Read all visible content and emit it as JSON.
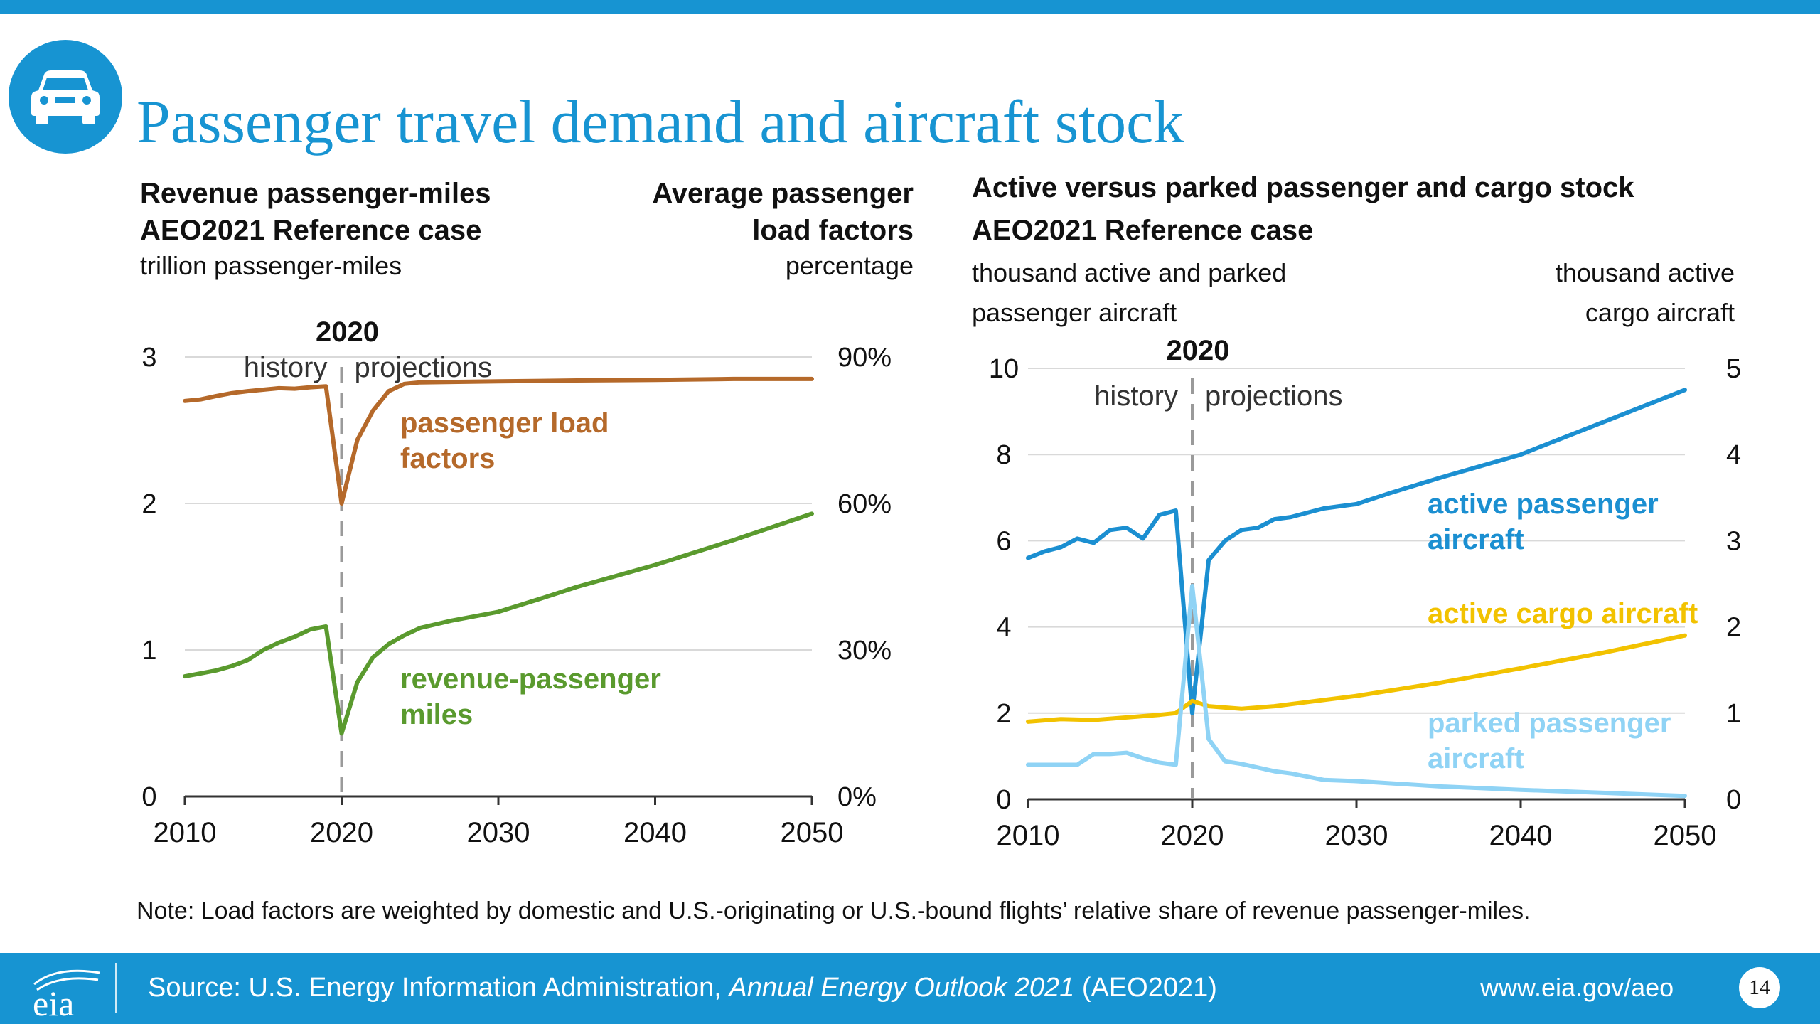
{
  "header": {
    "title": "Passenger travel demand and aircraft stock",
    "icon": "car-icon",
    "accent_color": "#1794d2"
  },
  "left_panel": {
    "title_line1": "Revenue passenger-miles",
    "title_line2": "AEO2021 Reference case",
    "left_unit": "trillion passenger-miles",
    "right_title_line1": "Average passenger",
    "right_title_line2": "load factors",
    "right_unit": "percentage"
  },
  "right_panel": {
    "title_line1": "Active versus parked passenger and cargo stock",
    "title_line2": "AEO2021 Reference case",
    "left_unit_line1": "thousand active and parked",
    "left_unit_line2": "passenger aircraft",
    "right_unit_line1": "thousand active",
    "right_unit_line2": "cargo aircraft"
  },
  "chart_data": [
    {
      "type": "line",
      "x_ticks": [
        "2010",
        "2020",
        "2030",
        "2040",
        "2050"
      ],
      "xlim": [
        2010,
        2050
      ],
      "ylim": [
        0,
        3
      ],
      "y_ticks": [
        "0",
        "1",
        "2",
        "3"
      ],
      "y2lim": [
        0,
        90
      ],
      "y2_ticks": [
        "0%",
        "30%",
        "60%",
        "90%"
      ],
      "grid": true,
      "annotations": {
        "year_label": "2020",
        "history": "history",
        "projections": "projections"
      },
      "series": [
        {
          "name": "passenger load factors",
          "label_line1": "passenger load",
          "label_line2": "factors",
          "axis": "right",
          "color": "#b5692a",
          "x": [
            2010,
            2011,
            2012,
            2013,
            2014,
            2015,
            2016,
            2017,
            2018,
            2019,
            2020,
            2021,
            2022,
            2023,
            2024,
            2025,
            2030,
            2035,
            2040,
            2045,
            2050
          ],
          "values": [
            81.0,
            81.3,
            82.0,
            82.6,
            83.0,
            83.3,
            83.6,
            83.5,
            83.8,
            84.0,
            60.0,
            73.0,
            79.0,
            83.0,
            84.5,
            84.8,
            85.0,
            85.2,
            85.3,
            85.5,
            85.5
          ]
        },
        {
          "name": "revenue-passenger miles",
          "label_line1": "revenue-passenger",
          "label_line2": "miles",
          "axis": "left",
          "color": "#5a9a2e",
          "x": [
            2010,
            2011,
            2012,
            2013,
            2014,
            2015,
            2016,
            2017,
            2018,
            2019,
            2020,
            2021,
            2022,
            2023,
            2024,
            2025,
            2027,
            2030,
            2033,
            2035,
            2040,
            2045,
            2050
          ],
          "values": [
            0.82,
            0.84,
            0.86,
            0.89,
            0.93,
            1.0,
            1.05,
            1.09,
            1.14,
            1.16,
            0.43,
            0.78,
            0.95,
            1.04,
            1.1,
            1.15,
            1.2,
            1.26,
            1.36,
            1.43,
            1.58,
            1.75,
            1.93
          ]
        }
      ]
    },
    {
      "type": "line",
      "x_ticks": [
        "2010",
        "2020",
        "2030",
        "2040",
        "2050"
      ],
      "xlim": [
        2010,
        2050
      ],
      "ylim": [
        0,
        10
      ],
      "y_ticks": [
        "0",
        "2",
        "4",
        "6",
        "8",
        "10"
      ],
      "y2lim": [
        0,
        5
      ],
      "y2_ticks": [
        "0",
        "1",
        "2",
        "3",
        "4",
        "5"
      ],
      "grid": true,
      "annotations": {
        "year_label": "2020",
        "history": "history",
        "projections": "projections"
      },
      "series": [
        {
          "name": "active passenger aircraft",
          "label_line1": "active passenger",
          "label_line2": "aircraft",
          "axis": "left",
          "color": "#1b8fd1",
          "x": [
            2010,
            2011,
            2012,
            2013,
            2014,
            2015,
            2016,
            2017,
            2018,
            2019,
            2020,
            2021,
            2022,
            2023,
            2024,
            2025,
            2026,
            2027,
            2028,
            2029,
            2030,
            2032,
            2035,
            2040,
            2045,
            2050
          ],
          "values": [
            5.6,
            5.75,
            5.85,
            6.05,
            5.95,
            6.25,
            6.3,
            6.05,
            6.6,
            6.7,
            2.0,
            5.55,
            6.0,
            6.25,
            6.3,
            6.5,
            6.55,
            6.65,
            6.75,
            6.8,
            6.85,
            7.1,
            7.45,
            8.0,
            8.75,
            9.5
          ]
        },
        {
          "name": "active cargo aircraft",
          "label_line1": "active cargo aircraft",
          "axis": "right",
          "color": "#f2c200",
          "x": [
            2010,
            2012,
            2014,
            2016,
            2018,
            2019,
            2020,
            2021,
            2023,
            2025,
            2030,
            2035,
            2040,
            2045,
            2050
          ],
          "values": [
            0.9,
            0.93,
            0.92,
            0.95,
            0.98,
            1.0,
            1.14,
            1.08,
            1.05,
            1.08,
            1.2,
            1.35,
            1.52,
            1.7,
            1.9
          ]
        },
        {
          "name": "parked passenger aircraft",
          "label_line1": "parked passenger",
          "label_line2": "aircraft",
          "axis": "left",
          "color": "#8fd3f5",
          "x": [
            2010,
            2011,
            2012,
            2013,
            2014,
            2015,
            2016,
            2017,
            2018,
            2019,
            2020,
            2021,
            2022,
            2023,
            2025,
            2026,
            2028,
            2030,
            2035,
            2040,
            2045,
            2050
          ],
          "values": [
            0.8,
            0.8,
            0.8,
            0.8,
            1.05,
            1.05,
            1.08,
            0.95,
            0.85,
            0.8,
            4.95,
            1.4,
            0.88,
            0.82,
            0.65,
            0.6,
            0.45,
            0.42,
            0.3,
            0.22,
            0.15,
            0.08
          ]
        }
      ]
    }
  ],
  "note": "Note: Load factors are weighted by domestic and U.S.-originating or U.S.-bound flights’ relative share of revenue passenger-miles.",
  "footer": {
    "logo_text": "eia",
    "source_prefix": "Source: U.S. Energy Information Administration, ",
    "source_italic": "Annual Energy Outlook 2021",
    "source_suffix": " (AEO2021)",
    "url": "www.eia.gov/aeo",
    "page_number": "14"
  }
}
